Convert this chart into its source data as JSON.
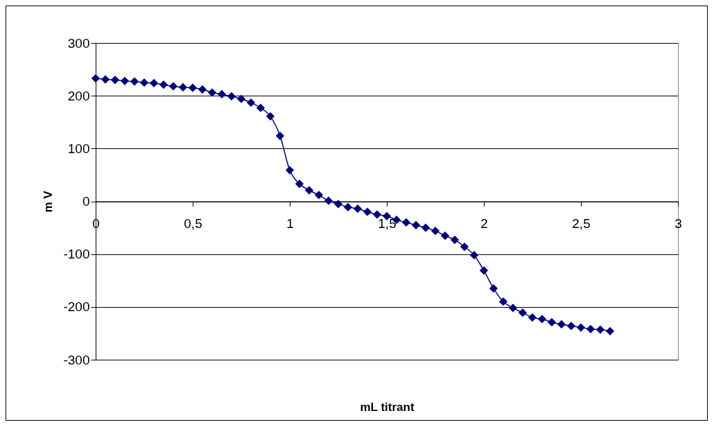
{
  "chart_data": {
    "type": "line",
    "xlabel": "mL titrant",
    "ylabel": "m V",
    "x": [
      0,
      0.05,
      0.1,
      0.15,
      0.2,
      0.25,
      0.3,
      0.35,
      0.4,
      0.45,
      0.5,
      0.55,
      0.6,
      0.65,
      0.7,
      0.75,
      0.8,
      0.85,
      0.9,
      0.95,
      1.0,
      1.05,
      1.1,
      1.15,
      1.2,
      1.25,
      1.3,
      1.35,
      1.4,
      1.45,
      1.5,
      1.55,
      1.6,
      1.65,
      1.7,
      1.75,
      1.8,
      1.85,
      1.9,
      1.95,
      2.0,
      2.05,
      2.1,
      2.15,
      2.2,
      2.25,
      2.3,
      2.35,
      2.4,
      2.45,
      2.5,
      2.55,
      2.6,
      2.65
    ],
    "series": [
      {
        "color": "#000080",
        "values": [
          233,
          231,
          230,
          228,
          227,
          225,
          224,
          221,
          218,
          216,
          215,
          212,
          206,
          203,
          199,
          194,
          187,
          177,
          161,
          124,
          59,
          33,
          21,
          12,
          1,
          -5,
          -11,
          -14,
          -20,
          -25,
          -28,
          -35,
          -40,
          -45,
          -50,
          -56,
          -65,
          -73,
          -86,
          -102,
          -131,
          -165,
          -190,
          -202,
          -211,
          -220,
          -223,
          -229,
          -233,
          -236,
          -239,
          -242,
          -243,
          -246
        ]
      }
    ],
    "xlim": [
      0,
      3
    ],
    "xticks": [
      0,
      {
        "value": 0.5,
        "label": "0,5"
      },
      1,
      {
        "value": 1.5,
        "label": "1,5"
      },
      2,
      {
        "value": 2.5,
        "label": "2,5"
      },
      3
    ],
    "ylim": [
      -300,
      300
    ],
    "yticks": [
      -300,
      -200,
      -100,
      0,
      100,
      200,
      300
    ],
    "grid": "y",
    "marker": "diamond",
    "line_style": "solid"
  }
}
